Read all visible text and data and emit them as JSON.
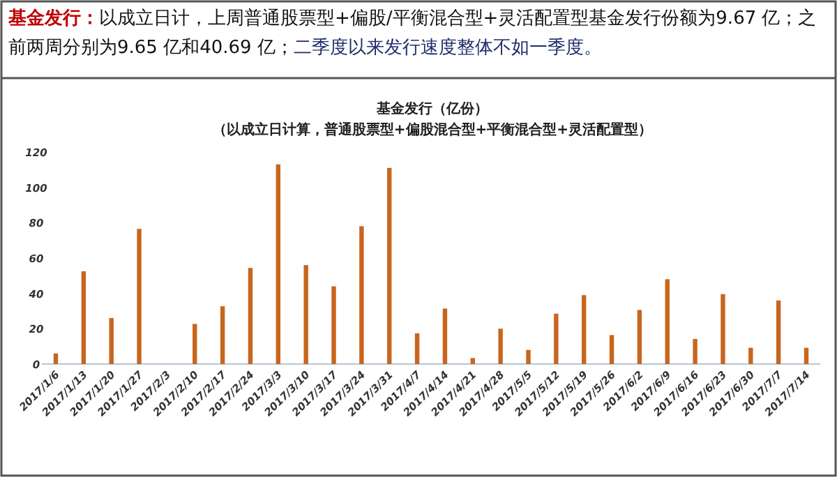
{
  "chart_data": {
    "type": "bar",
    "title": "基金发行（亿份）",
    "subtitle": "（以成立日计算，普通股票型+偏股混合型+平衡混合型+灵活配置型）",
    "annotations": [
      "基金发行：",
      "以成立日计，上周普通股票型+偏股/平衡混合型+灵活配置型基金发行份额为9.67 亿；之前两周分别为9.65 亿和40.69 亿；",
      "二季度以来发行速度整体不如一季度。"
    ],
    "categories": [
      "2017/1/6",
      "2017/1/13",
      "2017/1/20",
      "2017/1/27",
      "2017/2/3",
      "2017/2/10",
      "2017/2/17",
      "2017/2/24",
      "2017/3/3",
      "2017/3/10",
      "2017/3/17",
      "2017/3/24",
      "2017/3/31",
      "2017/4/7",
      "2017/4/14",
      "2017/4/21",
      "2017/4/28",
      "2017/5/5",
      "2017/5/12",
      "2017/5/19",
      "2017/5/26",
      "2017/6/2",
      "2017/6/9",
      "2017/6/16",
      "2017/6/23",
      "2017/6/30",
      "2017/7/7",
      "2017/7/14"
    ],
    "values": [
      6,
      52.5,
      26,
      76.5,
      0,
      22.7,
      32.7,
      54.4,
      113,
      56,
      44,
      78,
      111,
      17.4,
      31.4,
      3.4,
      20,
      8,
      28.5,
      39,
      16.4,
      30.6,
      48,
      14.2,
      39.6,
      9.2,
      36,
      9.2
    ],
    "color": "#c8661e",
    "ylim": [
      0,
      120
    ],
    "yticks": [
      0,
      20,
      40,
      60,
      80,
      100,
      120
    ],
    "grid": false,
    "legend": false
  }
}
